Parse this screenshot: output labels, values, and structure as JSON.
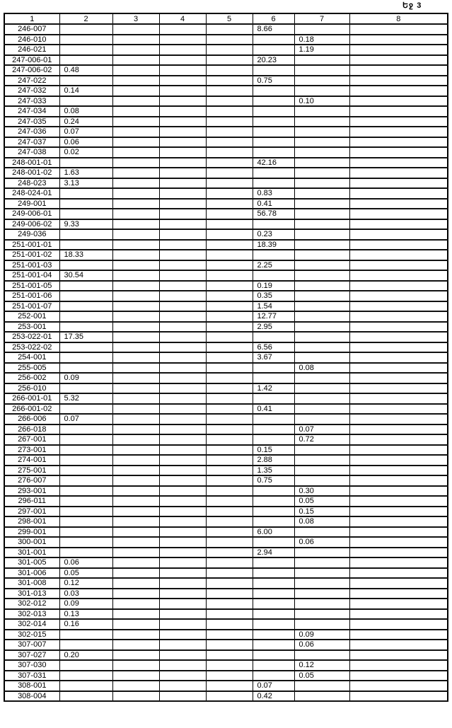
{
  "page_mark": "Եջ 3",
  "columns": [
    "1",
    "2",
    "3",
    "4",
    "5",
    "6",
    "7",
    "8"
  ],
  "rows": [
    [
      "246-007",
      "",
      "",
      "",
      "",
      "8.66",
      "",
      ""
    ],
    [
      "246-010",
      "",
      "",
      "",
      "",
      "",
      "0.18",
      ""
    ],
    [
      "246-021",
      "",
      "",
      "",
      "",
      "",
      "1.19",
      ""
    ],
    [
      "247-006-01",
      "",
      "",
      "",
      "",
      "20.23",
      "",
      ""
    ],
    [
      "247-006-02",
      "0.48",
      "",
      "",
      "",
      "",
      "",
      ""
    ],
    [
      "247-022",
      "",
      "",
      "",
      "",
      "0.75",
      "",
      ""
    ],
    [
      "247-032",
      "0.14",
      "",
      "",
      "",
      "",
      "",
      ""
    ],
    [
      "247-033",
      "",
      "",
      "",
      "",
      "",
      "0.10",
      ""
    ],
    [
      "247-034",
      "0.08",
      "",
      "",
      "",
      "",
      "",
      ""
    ],
    [
      "247-035",
      "0.24",
      "",
      "",
      "",
      "",
      "",
      ""
    ],
    [
      "247-036",
      "0.07",
      "",
      "",
      "",
      "",
      "",
      ""
    ],
    [
      "247-037",
      "0.06",
      "",
      "",
      "",
      "",
      "",
      ""
    ],
    [
      "247-038",
      "0.02",
      "",
      "",
      "",
      "",
      "",
      ""
    ],
    [
      "248-001-01",
      "",
      "",
      "",
      "",
      "42.16",
      "",
      ""
    ],
    [
      "248-001-02",
      "1.63",
      "",
      "",
      "",
      "",
      "",
      ""
    ],
    [
      "248-023",
      "3.13",
      "",
      "",
      "",
      "",
      "",
      ""
    ],
    [
      "248-024-01",
      "",
      "",
      "",
      "",
      "0.83",
      "",
      ""
    ],
    [
      "249-001",
      "",
      "",
      "",
      "",
      "0.41",
      "",
      ""
    ],
    [
      "249-006-01",
      "",
      "",
      "",
      "",
      "56.78",
      "",
      ""
    ],
    [
      "249-006-02",
      "9.33",
      "",
      "",
      "",
      "",
      "",
      ""
    ],
    [
      "249-036",
      "",
      "",
      "",
      "",
      "0.23",
      "",
      ""
    ],
    [
      "251-001-01",
      "",
      "",
      "",
      "",
      "18.39",
      "",
      ""
    ],
    [
      "251-001-02",
      "18.33",
      "",
      "",
      "",
      "",
      "",
      ""
    ],
    [
      "251-001-03",
      "",
      "",
      "",
      "",
      "2.25",
      "",
      ""
    ],
    [
      "251-001-04",
      "30.54",
      "",
      "",
      "",
      "",
      "",
      ""
    ],
    [
      "251-001-05",
      "",
      "",
      "",
      "",
      "0.19",
      "",
      ""
    ],
    [
      "251-001-06",
      "",
      "",
      "",
      "",
      "0.35",
      "",
      ""
    ],
    [
      "251-001-07",
      "",
      "",
      "",
      "",
      "1.54",
      "",
      ""
    ],
    [
      "252-001",
      "",
      "",
      "",
      "",
      "12.77",
      "",
      ""
    ],
    [
      "253-001",
      "",
      "",
      "",
      "",
      "2.95",
      "",
      ""
    ],
    [
      "253-022-01",
      "17.35",
      "",
      "",
      "",
      "",
      "",
      ""
    ],
    [
      "253-022-02",
      "",
      "",
      "",
      "",
      "6.56",
      "",
      ""
    ],
    [
      "254-001",
      "",
      "",
      "",
      "",
      "3.67",
      "",
      ""
    ],
    [
      "255-005",
      "",
      "",
      "",
      "",
      "",
      "0.08",
      ""
    ],
    [
      "256-002",
      "0.09",
      "",
      "",
      "",
      "",
      "",
      ""
    ],
    [
      "256-010",
      "",
      "",
      "",
      "",
      "1.42",
      "",
      ""
    ],
    [
      "266-001-01",
      "5.32",
      "",
      "",
      "",
      "",
      "",
      ""
    ],
    [
      "266-001-02",
      "",
      "",
      "",
      "",
      "0.41",
      "",
      ""
    ],
    [
      "266-006",
      "0.07",
      "",
      "",
      "",
      "",
      "",
      ""
    ],
    [
      "266-018",
      "",
      "",
      "",
      "",
      "",
      "0.07",
      ""
    ],
    [
      "267-001",
      "",
      "",
      "",
      "",
      "",
      "0.72",
      ""
    ],
    [
      "273-001",
      "",
      "",
      "",
      "",
      "0.15",
      "",
      ""
    ],
    [
      "274-001",
      "",
      "",
      "",
      "",
      "2.88",
      "",
      ""
    ],
    [
      "275-001",
      "",
      "",
      "",
      "",
      "1.35",
      "",
      ""
    ],
    [
      "276-007",
      "",
      "",
      "",
      "",
      "0.75",
      "",
      ""
    ],
    [
      "293-001",
      "",
      "",
      "",
      "",
      "",
      "0.30",
      ""
    ],
    [
      "296-011",
      "",
      "",
      "",
      "",
      "",
      "0.05",
      ""
    ],
    [
      "297-001",
      "",
      "",
      "",
      "",
      "",
      "0.15",
      ""
    ],
    [
      "298-001",
      "",
      "",
      "",
      "",
      "",
      "0.08",
      ""
    ],
    [
      "299-001",
      "",
      "",
      "",
      "",
      "6.00",
      "",
      ""
    ],
    [
      "300-001",
      "",
      "",
      "",
      "",
      "",
      "0.06",
      ""
    ],
    [
      "301-001",
      "",
      "",
      "",
      "",
      "2.94",
      "",
      ""
    ],
    [
      "301-005",
      "0.06",
      "",
      "",
      "",
      "",
      "",
      ""
    ],
    [
      "301-006",
      "0.05",
      "",
      "",
      "",
      "",
      "",
      ""
    ],
    [
      "301-008",
      "0.12",
      "",
      "",
      "",
      "",
      "",
      ""
    ],
    [
      "301-013",
      "0.03",
      "",
      "",
      "",
      "",
      "",
      ""
    ],
    [
      "302-012",
      "0.09",
      "",
      "",
      "",
      "",
      "",
      ""
    ],
    [
      "302-013",
      "0.13",
      "",
      "",
      "",
      "",
      "",
      ""
    ],
    [
      "302-014",
      "0.16",
      "",
      "",
      "",
      "",
      "",
      ""
    ],
    [
      "302-015",
      "",
      "",
      "",
      "",
      "",
      "0.09",
      ""
    ],
    [
      "307-007",
      "",
      "",
      "",
      "",
      "",
      "0.06",
      ""
    ],
    [
      "307-027",
      "0.20",
      "",
      "",
      "",
      "",
      "",
      ""
    ],
    [
      "307-030",
      "",
      "",
      "",
      "",
      "",
      "0.12",
      ""
    ],
    [
      "307-031",
      "",
      "",
      "",
      "",
      "",
      "0.05",
      ""
    ],
    [
      "308-001",
      "",
      "",
      "",
      "",
      "0.07",
      "",
      ""
    ],
    [
      "308-004",
      "",
      "",
      "",
      "",
      "0.42",
      "",
      ""
    ]
  ]
}
